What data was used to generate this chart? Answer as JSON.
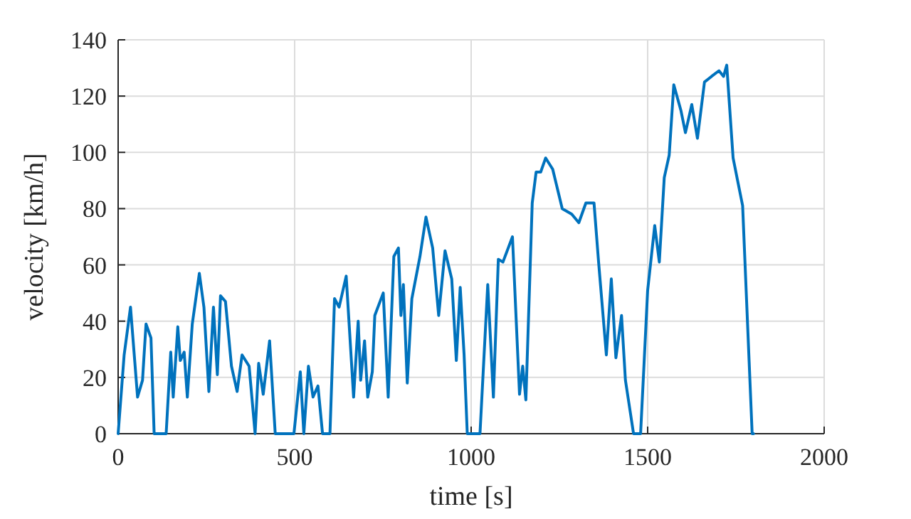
{
  "chart_data": {
    "type": "line",
    "xlabel": "time [s]",
    "ylabel": "velocity [km/h]",
    "xlim": [
      0,
      2000
    ],
    "xticks": [
      0,
      500,
      1000,
      1500,
      2000
    ],
    "ylim": [
      0,
      140
    ],
    "yticks": [
      0,
      20,
      40,
      60,
      80,
      100,
      120,
      140
    ],
    "grid": true,
    "line_style": "solid",
    "marker": "none",
    "x": [
      0,
      17,
      35,
      55,
      69,
      79,
      93,
      102,
      136,
      149,
      156,
      169,
      176,
      187,
      196,
      210,
      230,
      243,
      257,
      270,
      281,
      290,
      304,
      321,
      337,
      351,
      371,
      388,
      398,
      411,
      429,
      445,
      498,
      516,
      526,
      539,
      552,
      566,
      579,
      600,
      613,
      626,
      646,
      667,
      680,
      687,
      698,
      707,
      720,
      727,
      751,
      765,
      781,
      794,
      801,
      808,
      819,
      832,
      855,
      872,
      891,
      908,
      926,
      945,
      958,
      969,
      980,
      989,
      1025,
      1047,
      1063,
      1077,
      1090,
      1117,
      1137,
      1146,
      1155,
      1173,
      1184,
      1197,
      1211,
      1231,
      1258,
      1285,
      1305,
      1325,
      1348,
      1361,
      1383,
      1397,
      1410,
      1426,
      1437,
      1460,
      1480,
      1500,
      1520,
      1533,
      1547,
      1561,
      1574,
      1594,
      1607,
      1625,
      1641,
      1661,
      1681,
      1702,
      1715,
      1724,
      1742,
      1769,
      1796,
      1800
    ],
    "series": [
      {
        "color": "#0072bd",
        "values": [
          0,
          28,
          45,
          13,
          19,
          39,
          34,
          0,
          0,
          29,
          13,
          38,
          26,
          29,
          13,
          39,
          57,
          45,
          15,
          45,
          21,
          49,
          47,
          24,
          15,
          28,
          24,
          0,
          25,
          14,
          33,
          0,
          0,
          22,
          0,
          24,
          13,
          17,
          0,
          0,
          48,
          45,
          56,
          13,
          40,
          19,
          33,
          13,
          22,
          42,
          50,
          13,
          63,
          66,
          42,
          53,
          18,
          48,
          63,
          77,
          66,
          42,
          65,
          55,
          26,
          52,
          28,
          0,
          0,
          53,
          13,
          62,
          61,
          70,
          14,
          24,
          12,
          82,
          93,
          93,
          98,
          94,
          80,
          78,
          75,
          82,
          82,
          61,
          28,
          55,
          27,
          42,
          19,
          0,
          0,
          51,
          74,
          61,
          91,
          99,
          124,
          115,
          107,
          117,
          105,
          125,
          127,
          129,
          127,
          131,
          98,
          81,
          0,
          0
        ]
      }
    ]
  }
}
